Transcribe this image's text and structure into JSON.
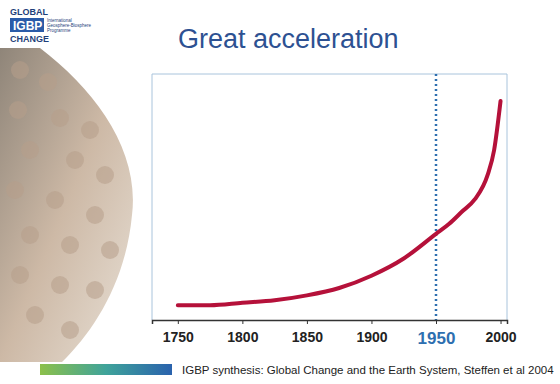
{
  "logo": {
    "top": "GLOBAL",
    "badge": "IGBP",
    "bottom": "CHANGE",
    "small": [
      "International",
      "Geosphere-Biosphere",
      "Programme"
    ]
  },
  "chart_data": {
    "type": "line",
    "title": "Great acceleration",
    "x": [
      1750,
      1775,
      1800,
      1825,
      1850,
      1875,
      1900,
      1925,
      1950,
      1960,
      1970,
      1980,
      1990,
      1995,
      2000
    ],
    "values": [
      6,
      6,
      7,
      8,
      10,
      13,
      18,
      25,
      35,
      39,
      44,
      49,
      59,
      69,
      89
    ],
    "color": "#b5113a",
    "xlim": [
      1730,
      2005
    ],
    "xticks": [
      1750,
      1800,
      1850,
      1900,
      1950,
      2000
    ],
    "ylim": [
      0,
      100
    ],
    "vline": 1950,
    "tick_labels": "x",
    "grid": false,
    "source": "IGBP synthesis: Global Change and the Earth System, Steffen et al 2004"
  }
}
